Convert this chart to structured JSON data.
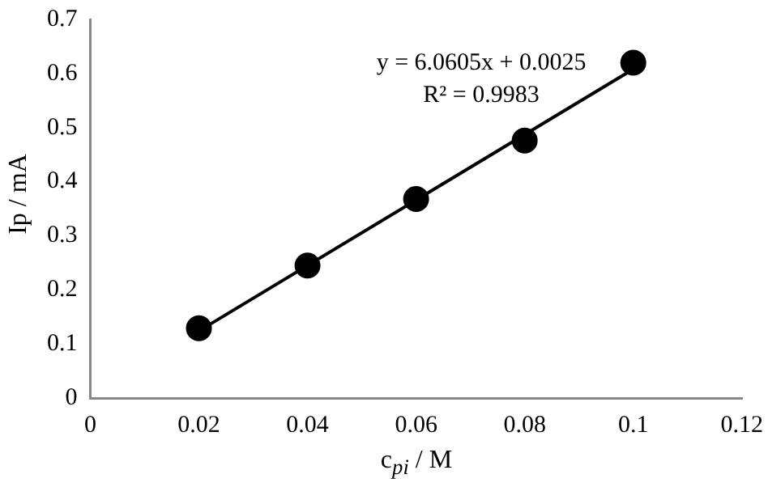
{
  "chart_data": {
    "type": "scatter",
    "xlabel": "c$_{pi}$ / M",
    "ylabel": "Ip / mA",
    "annotations": [
      "y = 6.0605x + 0.0025",
      "R² = 0.9983"
    ],
    "series": [
      {
        "type": "scatter",
        "color": "#000000",
        "x": [
          0.02,
          0.04,
          0.06,
          0.08,
          0.1
        ],
        "values": [
          0.129,
          0.245,
          0.368,
          0.476,
          0.62
        ],
        "marker": "circle"
      },
      {
        "type": "line",
        "color": "#000000",
        "x": [
          0.02,
          0.1
        ],
        "values": [
          0.124,
          0.608
        ],
        "marker": "none",
        "line_style": "solid"
      }
    ],
    "xlim": [
      0,
      0.12
    ],
    "xticks": [
      0,
      0.02,
      0.04,
      0.06,
      0.08,
      0.1,
      0.12
    ],
    "ylim": [
      0,
      0.7
    ],
    "yticks": [
      0,
      0.1,
      0.2,
      0.3,
      0.4,
      0.5,
      0.6,
      0.7
    ],
    "grid": false,
    "legend": false
  }
}
